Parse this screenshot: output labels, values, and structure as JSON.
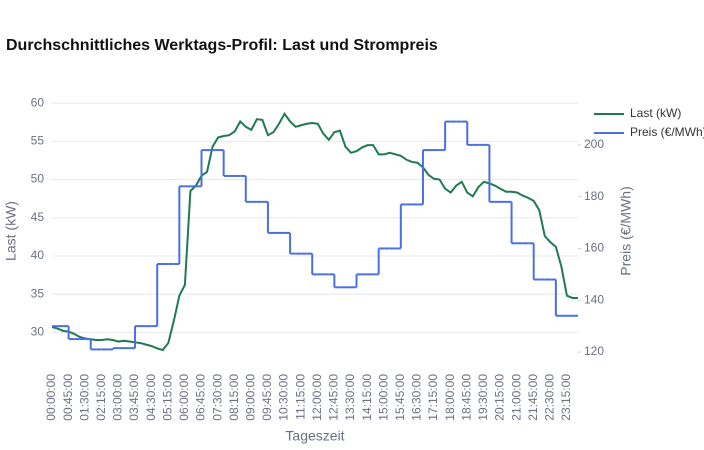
{
  "chart_data": {
    "type": "line",
    "title": "Durchschnittliches Werktags-Profil: Last und Strompreis",
    "x_label": "Tageszeit",
    "y_label": "Last (kW)",
    "y2_label": "Preis (€/MWh)",
    "categories": [
      "00:00:00",
      null,
      null,
      "00:45:00",
      null,
      null,
      "01:30:00",
      null,
      null,
      "02:15:00",
      null,
      null,
      "03:00:00",
      null,
      null,
      "03:45:00",
      null,
      null,
      "04:30:00",
      null,
      null,
      "05:15:00",
      null,
      null,
      "06:00:00",
      null,
      null,
      "06:45:00",
      null,
      null,
      "07:30:00",
      null,
      null,
      "08:15:00",
      null,
      null,
      "09:00:00",
      null,
      null,
      "09:45:00",
      null,
      null,
      "10:30:00",
      null,
      null,
      "11:15:00",
      null,
      null,
      "12:00:00",
      null,
      null,
      "12:45:00",
      null,
      null,
      "13:30:00",
      null,
      null,
      "14:15:00",
      null,
      null,
      "15:00:00",
      null,
      null,
      "15:45:00",
      null,
      null,
      "16:30:00",
      null,
      null,
      "17:15:00",
      null,
      null,
      "18:00:00",
      null,
      null,
      "18:45:00",
      null,
      null,
      "19:30:00",
      null,
      null,
      "20:15:00",
      null,
      null,
      "21:00:00",
      null,
      null,
      "21:45:00",
      null,
      null,
      "22:30:00",
      null,
      null,
      "23:15:00",
      null,
      null
    ],
    "series": [
      {
        "name": "Last (kW)",
        "color": "#1f7a4f",
        "shape": "linear",
        "values": [
          30.7,
          30.5,
          30.2,
          30.1,
          29.8,
          29.4,
          29.2,
          29.1,
          29.0,
          29.0,
          29.1,
          29.0,
          28.8,
          28.9,
          28.8,
          28.7,
          28.6,
          28.4,
          28.2,
          27.9,
          27.7,
          28.6,
          31.5,
          34.8,
          36.2,
          48.5,
          49.2,
          50.5,
          51.0,
          54.3,
          55.5,
          55.7,
          55.8,
          56.3,
          57.6,
          56.9,
          56.5,
          57.9,
          57.8,
          55.8,
          56.2,
          57.3,
          58.6,
          57.6,
          56.9,
          57.1,
          57.3,
          57.4,
          57.3,
          56.0,
          55.2,
          56.2,
          56.4,
          54.3,
          53.5,
          53.7,
          54.2,
          54.5,
          54.5,
          53.3,
          53.3,
          53.5,
          53.3,
          53.1,
          52.6,
          52.3,
          52.2,
          51.6,
          50.6,
          50.1,
          50.0,
          48.8,
          48.3,
          49.2,
          49.7,
          48.3,
          47.8,
          49.0,
          49.7,
          49.5,
          49.2,
          48.8,
          48.4,
          48.4,
          48.3,
          47.9,
          47.6,
          47.2,
          46.0,
          42.6,
          41.8,
          41.2,
          38.6,
          34.8,
          34.5,
          34.5
        ]
      },
      {
        "name": "Preis (€/MWh)",
        "color": "#4a6fe3",
        "shape": "hv",
        "axis": "y2",
        "values": [
          130,
          130,
          130,
          125,
          125,
          125,
          125,
          121,
          121,
          121,
          121,
          121.5,
          121.5,
          121.5,
          121.5,
          130,
          130,
          130,
          130,
          154,
          154,
          154,
          154,
          184,
          184,
          184,
          184,
          198,
          198,
          198,
          198,
          188,
          188,
          188,
          188,
          178,
          178,
          178,
          178,
          166,
          166,
          166,
          166,
          158,
          158,
          158,
          158,
          150,
          150,
          150,
          150,
          145,
          145,
          145,
          145,
          150,
          150,
          150,
          150,
          160,
          160,
          160,
          160,
          177,
          177,
          177,
          177,
          198,
          198,
          198,
          198,
          209,
          209,
          209,
          209,
          200,
          200,
          200,
          200,
          178,
          178,
          178,
          178,
          162,
          162,
          162,
          162,
          148,
          148,
          148,
          148,
          134,
          134,
          134,
          134,
          134
        ]
      }
    ],
    "ylim": [
      25.6,
      60.8
    ],
    "yticks": [
      30,
      35,
      40,
      45,
      50,
      55,
      60
    ],
    "y2lim": [
      114.6,
      218.5
    ],
    "y2ticks": [
      120,
      140,
      160,
      180,
      200
    ],
    "grid": true,
    "legend": "top-right"
  }
}
